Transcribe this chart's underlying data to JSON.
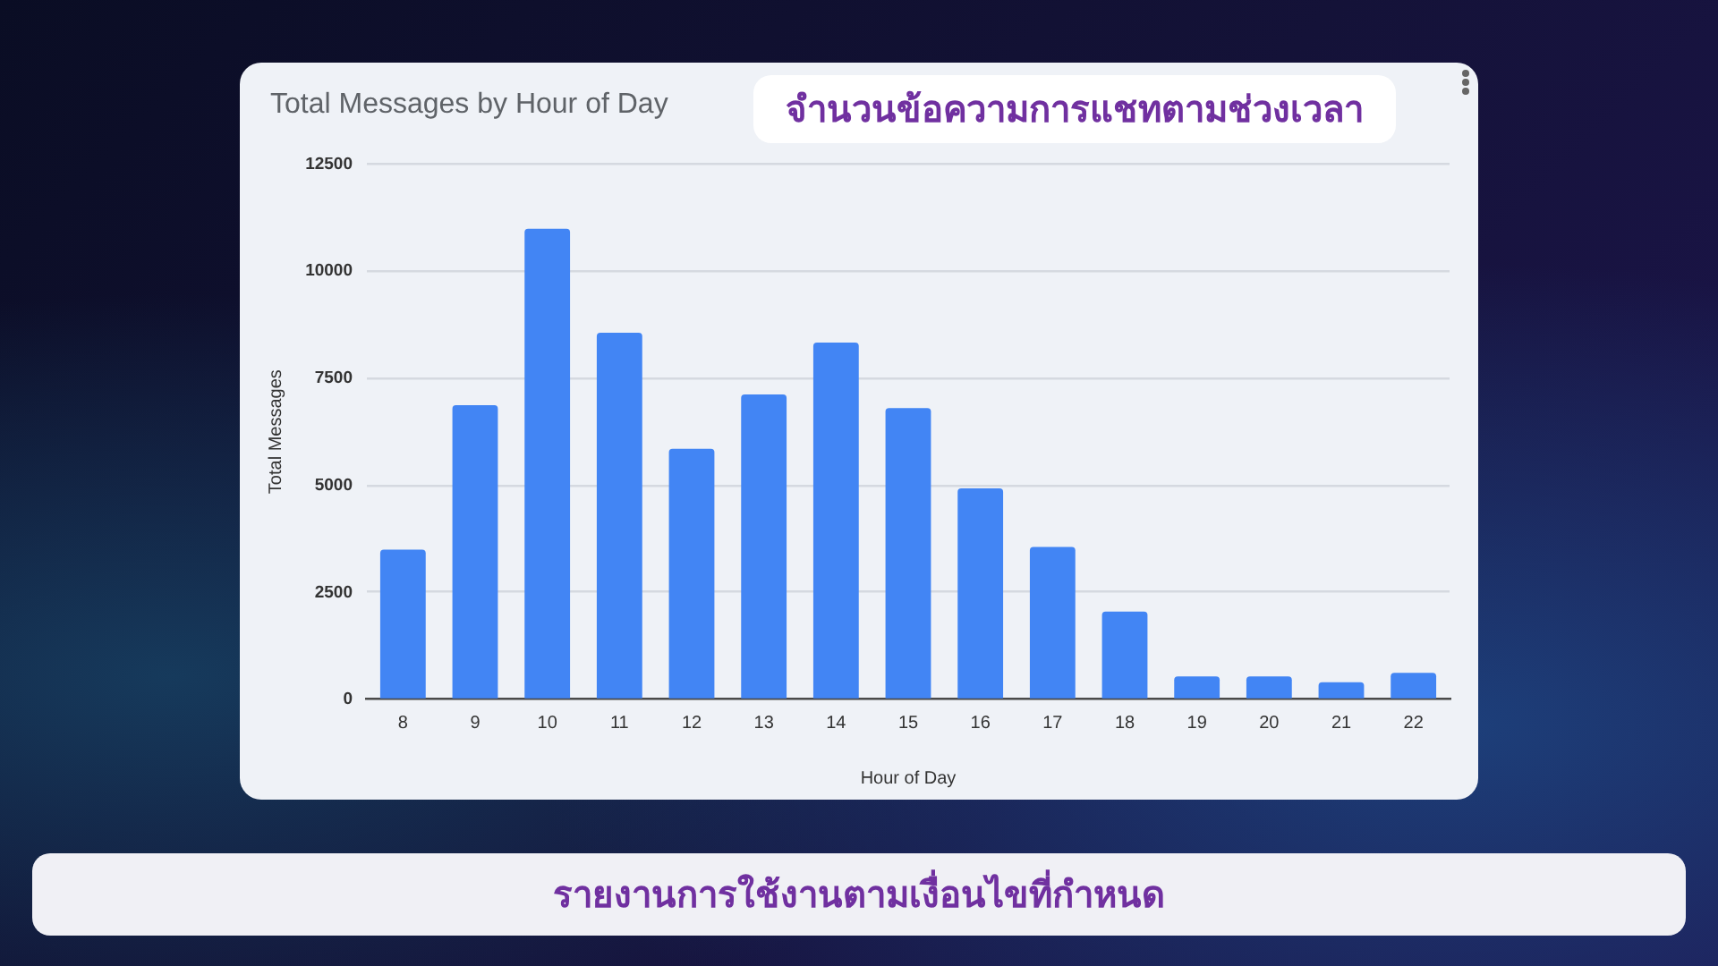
{
  "chart_data": {
    "type": "bar",
    "title": "Total Messages by Hour of Day",
    "subtitle": "จำนวนข้อความการแชทตามช่วงเวลา",
    "xlabel": "Hour of Day",
    "ylabel": "Total Messages",
    "annotations": [
      "รายงานการใช้งานตามเงื่อนไขที่กำหนด"
    ],
    "categories": [
      "8",
      "9",
      "10",
      "11",
      "12",
      "13",
      "14",
      "15",
      "16",
      "17",
      "18",
      "19",
      "20",
      "21",
      "22"
    ],
    "values": [
      3500,
      6870,
      10990,
      8560,
      5850,
      7120,
      8330,
      6800,
      4930,
      3560,
      2050,
      540,
      540,
      400,
      620
    ],
    "color": "#4285f4",
    "ylim": [
      0,
      12500
    ],
    "yticks": [
      0,
      2500,
      5000,
      7500,
      10000,
      12500
    ],
    "grid": "y"
  }
}
